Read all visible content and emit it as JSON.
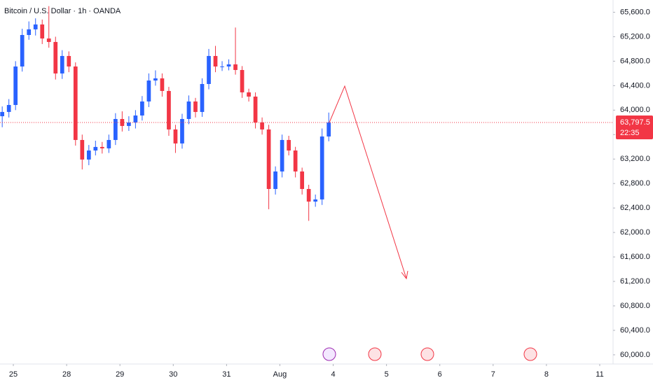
{
  "chart_data": {
    "type": "candlestick",
    "title": "Bitcoin / U.S. Dollar · 1h · OANDA",
    "x": [
      -5,
      -2,
      1,
      4,
      7,
      10,
      13,
      16,
      19,
      22,
      25,
      28,
      31,
      34,
      37,
      40,
      43,
      46,
      49,
      52,
      55,
      58,
      61,
      64,
      67,
      70,
      73,
      76,
      79,
      82,
      85,
      88,
      91,
      94,
      97,
      100,
      103,
      106,
      109,
      112,
      115,
      118,
      121,
      124,
      127,
      130,
      133,
      136,
      139,
      142
    ],
    "open": [
      63900,
      63970,
      64084,
      64713,
      65228,
      65320,
      65400,
      65171,
      65114,
      64599,
      64885,
      64713,
      63512,
      63192,
      63340,
      63398,
      63375,
      63512,
      63855,
      63741,
      63798,
      63912,
      64141,
      64484,
      64519,
      64313,
      63684,
      63455,
      63855,
      64141,
      63970,
      64427,
      64885,
      64713,
      64713,
      64748,
      64656,
      64290,
      64221,
      63798,
      63684,
      62711,
      62997,
      63512,
      63340,
      62997,
      62711,
      62505,
      62540,
      63569
    ],
    "high": [
      64060,
      64180,
      64800,
      65330,
      65450,
      65500,
      65480,
      65700,
      65200,
      64980,
      64960,
      64780,
      63600,
      63430,
      63500,
      63480,
      63600,
      63950,
      63980,
      63900,
      64000,
      64230,
      64600,
      64650,
      64600,
      64380,
      63760,
      63940,
      64240,
      64200,
      64520,
      65000,
      65050,
      64800,
      64830,
      65350,
      64720,
      64350,
      64290,
      63880,
      63760,
      63080,
      63600,
      63580,
      63400,
      63060,
      62780,
      62620,
      63700,
      63960
    ],
    "low": [
      63720,
      63880,
      64000,
      64630,
      65150,
      65220,
      65080,
      65020,
      64500,
      64510,
      64620,
      63420,
      63030,
      63100,
      63260,
      63290,
      63300,
      63430,
      63650,
      63660,
      63700,
      63830,
      64050,
      64400,
      64220,
      63580,
      63300,
      63370,
      63770,
      63880,
      63890,
      64340,
      64620,
      64640,
      64650,
      64580,
      64200,
      64140,
      63700,
      63600,
      62380,
      62620,
      62900,
      63260,
      62900,
      62620,
      62190,
      62420,
      62450,
      63490
    ],
    "close": [
      63970,
      64084,
      64713,
      65228,
      65320,
      65400,
      65171,
      65114,
      64599,
      64885,
      64713,
      63512,
      63192,
      63340,
      63398,
      63375,
      63512,
      63855,
      63741,
      63798,
      63912,
      64141,
      64484,
      64519,
      64313,
      63684,
      63455,
      63855,
      64141,
      63970,
      64427,
      64885,
      64713,
      64713,
      64748,
      64656,
      64290,
      64221,
      63798,
      63684,
      62711,
      62997,
      63512,
      63340,
      62997,
      62711,
      62505,
      62540,
      63569,
      63797.5
    ],
    "up_color": "#2962ff",
    "down_color": "#f23645",
    "xlim": [
      -6,
      270
    ],
    "ylim": [
      59850,
      65800
    ],
    "xticks": [
      {
        "value": 0,
        "label": "25"
      },
      {
        "value": 24,
        "label": "28"
      },
      {
        "value": 48,
        "label": "29"
      },
      {
        "value": 72,
        "label": "30"
      },
      {
        "value": 96,
        "label": "31"
      },
      {
        "value": 120,
        "label": "Aug"
      },
      {
        "value": 144,
        "label": "4"
      },
      {
        "value": 168,
        "label": "5"
      },
      {
        "value": 192,
        "label": "6"
      },
      {
        "value": 216,
        "label": "7"
      },
      {
        "value": 240,
        "label": "8"
      },
      {
        "value": 264,
        "label": "11"
      }
    ],
    "yticks": [
      {
        "value": 60000,
        "label": "60,000.0"
      },
      {
        "value": 60400,
        "label": "60,400.0"
      },
      {
        "value": 60800,
        "label": "60,800.0"
      },
      {
        "value": 61200,
        "label": "61,200.0"
      },
      {
        "value": 61600,
        "label": "61,600.0"
      },
      {
        "value": 62000,
        "label": "62,000.0"
      },
      {
        "value": 62400,
        "label": "62,400.0"
      },
      {
        "value": 62800,
        "label": "62,800.0"
      },
      {
        "value": 63200,
        "label": "63,200.0"
      },
      {
        "value": 63600,
        "label": "63,600.0"
      },
      {
        "value": 64000,
        "label": "64,000.0"
      },
      {
        "value": 64400,
        "label": "64,400.0"
      },
      {
        "value": 64800,
        "label": "64,800.0"
      },
      {
        "value": 65200,
        "label": "65,200.0"
      },
      {
        "value": 65600,
        "label": "65,600.0"
      }
    ],
    "grid": false,
    "current_price": {
      "value": 63797.5,
      "label": "63,797.5"
    },
    "countdown": "22:35"
  }
}
